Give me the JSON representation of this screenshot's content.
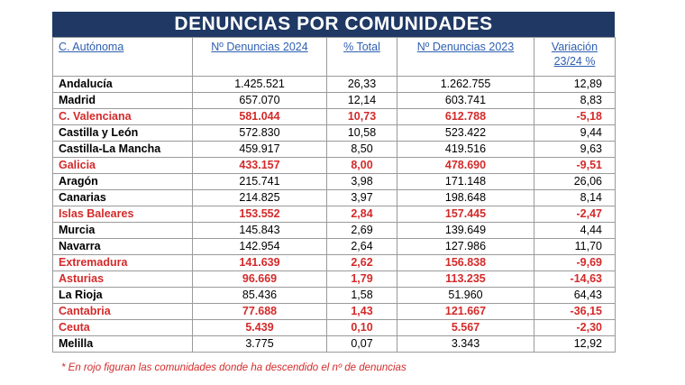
{
  "title": "DENUNCIAS POR COMUNIDADES",
  "table": {
    "header": [
      "C. Autónoma",
      "Nº Denuncias 2024",
      "% Total",
      "Nº Denuncias 2023",
      "Variación 23/24 %"
    ],
    "rows": [
      {
        "cells": [
          "Andalucía",
          "1.425.521",
          "26,33",
          "1.262.755",
          "12,89"
        ],
        "color": "#000000"
      },
      {
        "cells": [
          "Madrid",
          "657.070",
          "12,14",
          "603.741",
          "8,83"
        ],
        "color": "#000000"
      },
      {
        "cells": [
          "C. Valenciana",
          "581.044",
          "10,73",
          "612.788",
          "-5,18"
        ],
        "color": "#d42a2a"
      },
      {
        "cells": [
          "Castilla y León",
          "572.830",
          "10,58",
          "523.422",
          "9,44"
        ],
        "color": "#000000"
      },
      {
        "cells": [
          "Castilla-La Mancha",
          "459.917",
          "8,50",
          "419.516",
          "9,63"
        ],
        "color": "#000000"
      },
      {
        "cells": [
          "Galicia",
          "433.157",
          "8,00",
          "478.690",
          "-9,51"
        ],
        "color": "#d42a2a"
      },
      {
        "cells": [
          "Aragón",
          "215.741",
          "3,98",
          "171.148",
          "26,06"
        ],
        "color": "#000000"
      },
      {
        "cells": [
          "Canarias",
          "214.825",
          "3,97",
          "198.648",
          "8,14"
        ],
        "color": "#000000"
      },
      {
        "cells": [
          "Islas Baleares",
          "153.552",
          "2,84",
          "157.445",
          "-2,47"
        ],
        "color": "#d42a2a"
      },
      {
        "cells": [
          "Murcia",
          "145.843",
          "2,69",
          "139.649",
          "4,44"
        ],
        "color": "#000000"
      },
      {
        "cells": [
          "Navarra",
          "142.954",
          "2,64",
          "127.986",
          "11,70"
        ],
        "color": "#000000"
      },
      {
        "cells": [
          "Extremadura",
          "141.639",
          "2,62",
          "156.838",
          "-9,69"
        ],
        "color": "#d42a2a"
      },
      {
        "cells": [
          "Asturias",
          "96.669",
          "1,79",
          "113.235",
          "-14,63"
        ],
        "color": "#d42a2a"
      },
      {
        "cells": [
          "La Rioja",
          "85.436",
          "1,58",
          "51.960",
          "64,43"
        ],
        "color": "#000000"
      },
      {
        "cells": [
          "Cantabria",
          "77.688",
          "1,43",
          "121.667",
          "-36,15"
        ],
        "color": "#d42a2a"
      },
      {
        "cells": [
          "Ceuta",
          "5.439",
          "0,10",
          "5.567",
          "-2,30"
        ],
        "color": "#d42a2a"
      },
      {
        "cells": [
          "Melilla",
          "3.775",
          "0,07",
          "3.343",
          "12,92"
        ],
        "color": "#000000"
      }
    ]
  },
  "footnote": "* En rojo figuran las comunidades donde ha descendido el nº de denuncias"
}
